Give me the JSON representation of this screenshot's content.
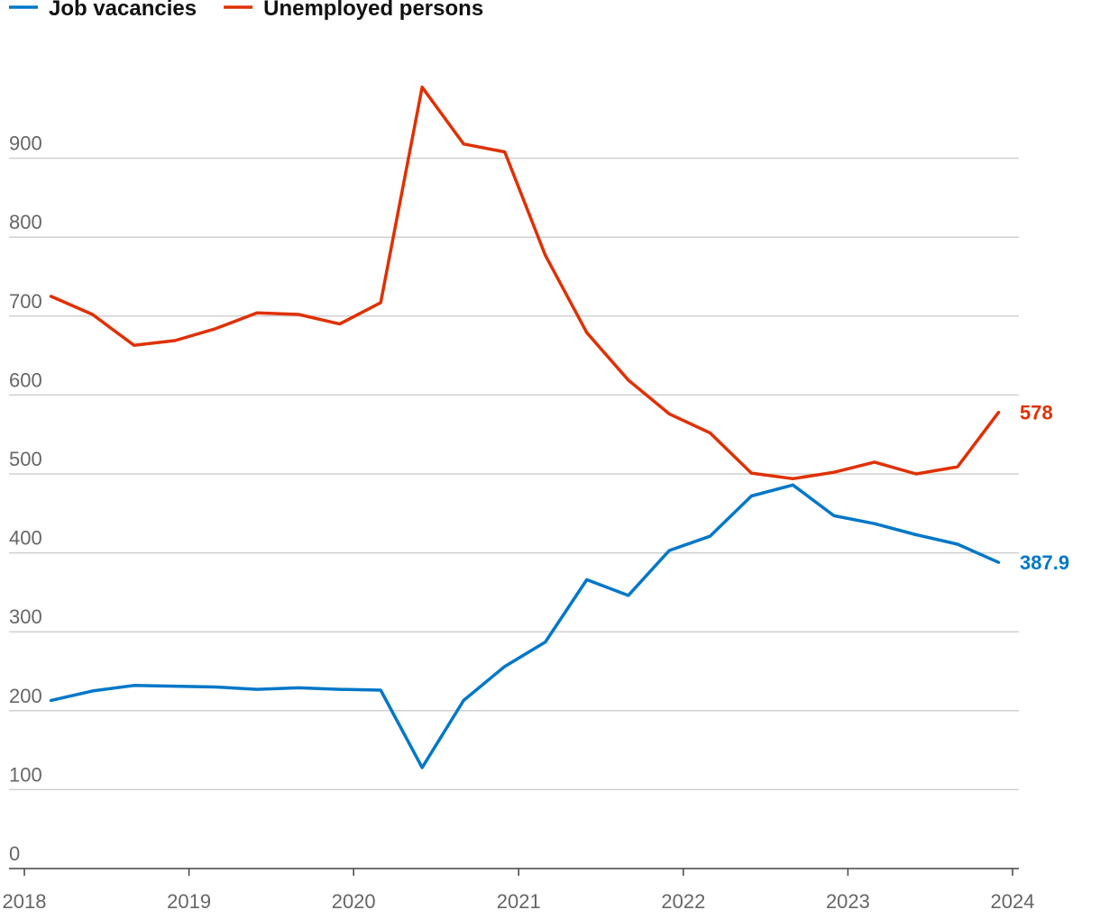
{
  "chart_data": {
    "type": "line",
    "title": "",
    "xlabel": "",
    "ylabel": "",
    "ylim": [
      0,
      1000
    ],
    "xlim": [
      "2017-07-01",
      "2024-01-15"
    ],
    "grid": true,
    "legend_position": "top-left",
    "y_ticks": [
      "0",
      "100",
      "200",
      "300",
      "400",
      "500",
      "600",
      "700",
      "800",
      "900"
    ],
    "x_ticks": [
      "2018",
      "2019",
      "2020",
      "2021",
      "2022",
      "2023",
      "2024"
    ],
    "x": [
      "2018-03",
      "2018-06",
      "2018-09",
      "2018-12",
      "2019-03",
      "2019-06",
      "2019-09",
      "2019-12",
      "2020-03",
      "2020-06",
      "2020-09",
      "2020-12",
      "2021-03",
      "2021-06",
      "2021-09",
      "2021-12",
      "2022-03",
      "2022-06",
      "2022-09",
      "2022-12",
      "2023-03",
      "2023-06",
      "2023-09",
      "2023-12"
    ],
    "series": [
      {
        "name": "Job vacancies",
        "color": "#0077c8",
        "values": [
          213,
          225,
          232,
          231,
          230,
          227,
          229,
          227,
          226,
          128,
          213,
          256,
          287,
          366,
          346,
          403,
          421,
          472,
          486,
          447,
          437,
          423,
          411,
          387.9
        ],
        "end_label": "387.9"
      },
      {
        "name": "Unemployed persons",
        "color": "#e03000",
        "values": [
          725,
          702,
          663,
          669,
          684,
          704,
          702,
          690,
          717,
          990,
          918,
          908,
          777,
          679,
          619,
          576,
          552,
          501,
          494,
          502,
          515,
          500,
          509,
          578
        ],
        "end_label": "578"
      }
    ]
  }
}
